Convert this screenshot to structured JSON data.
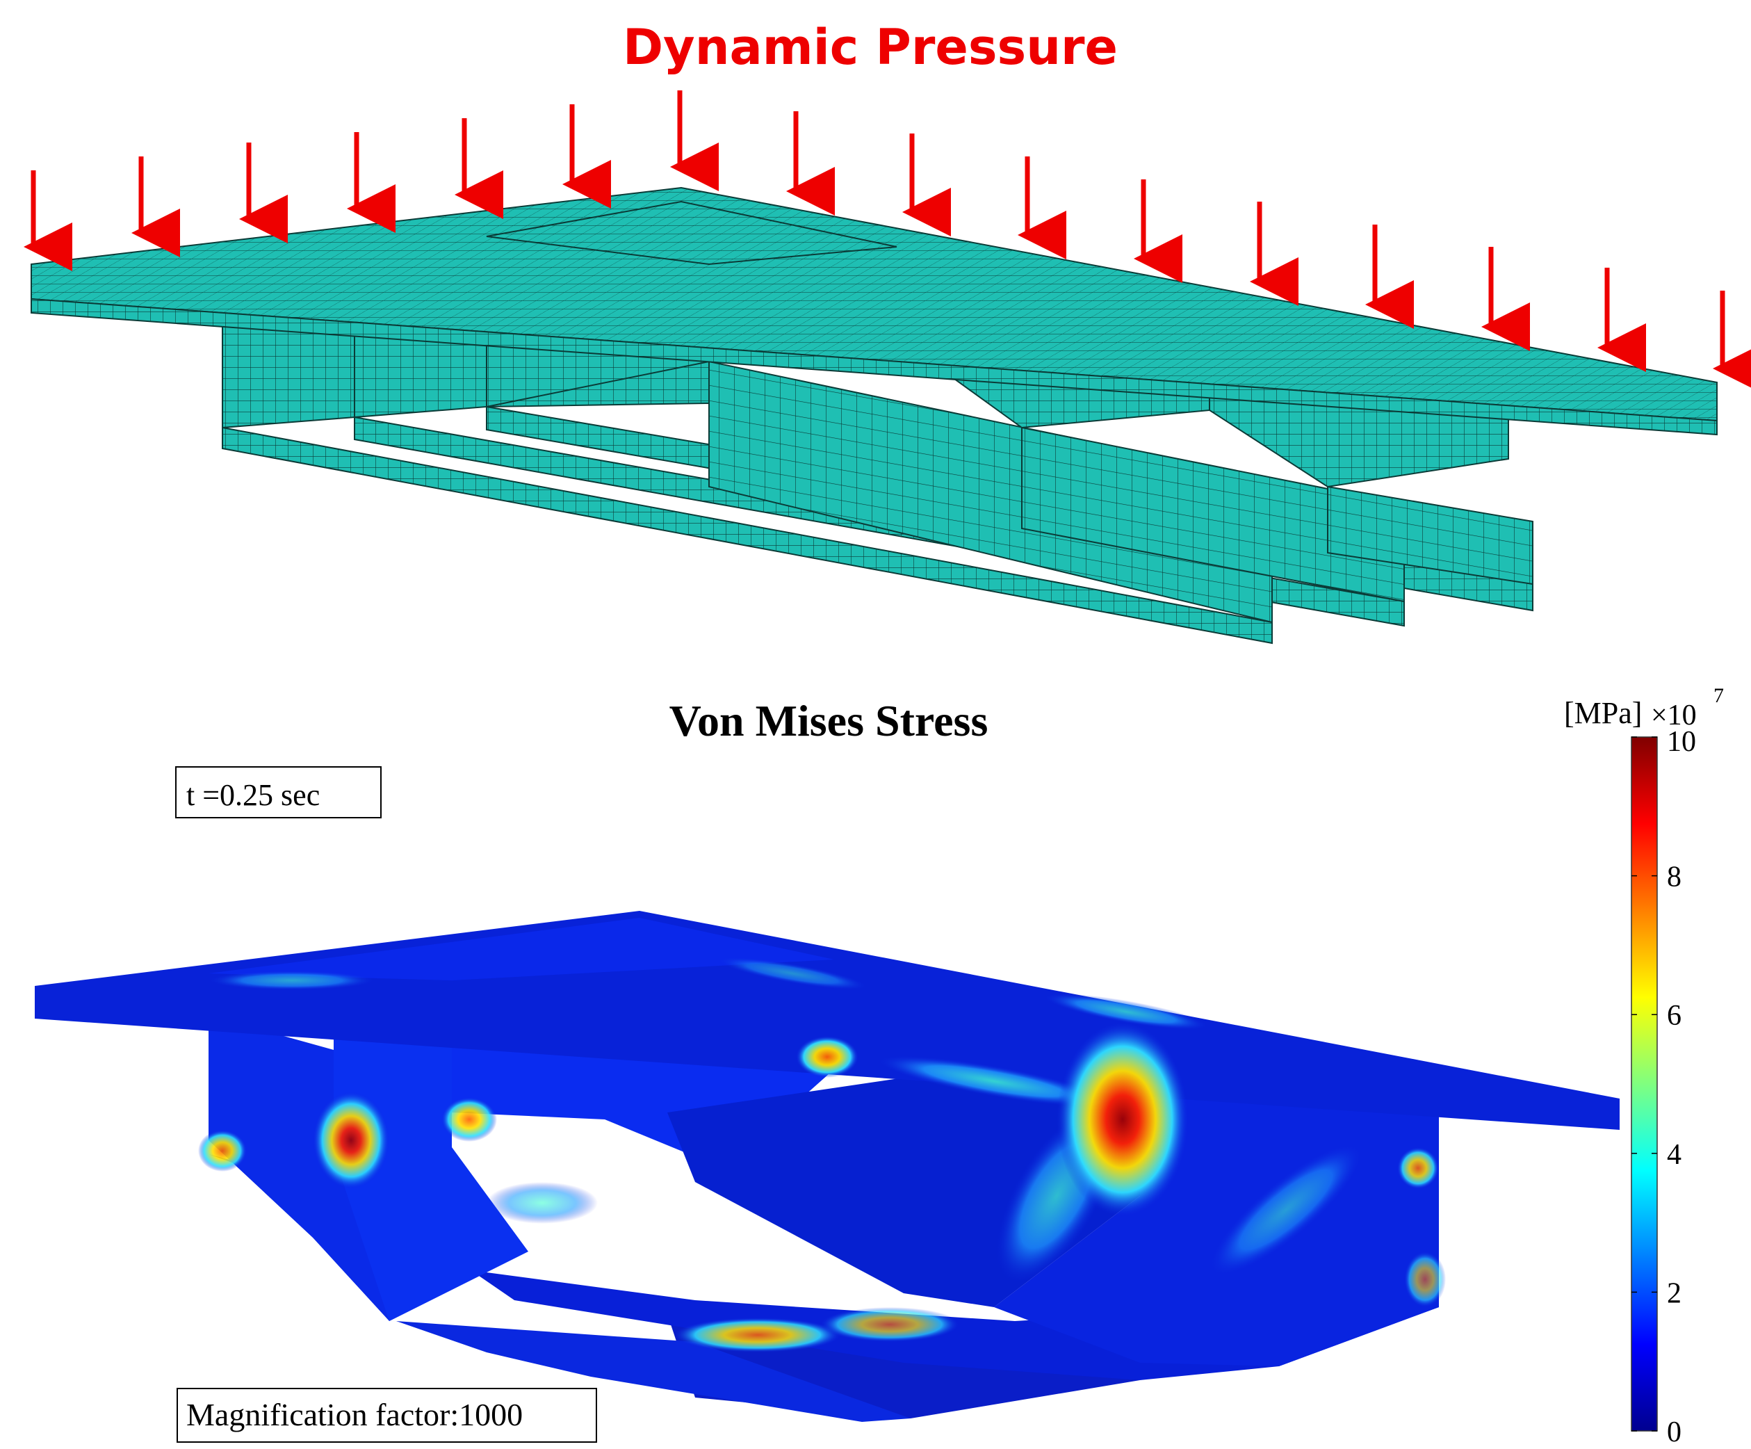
{
  "top_panel": {
    "title": "Dynamic Pressure"
  },
  "bottom_panel": {
    "title": "Von Mises Stress",
    "time_label": "t =0.25 sec",
    "magnification_label": "Magnification factor:1000"
  },
  "colorbar": {
    "unit_label": "[MPa]",
    "multiplier_base": "×10",
    "multiplier_exponent": "7",
    "ticks": [
      "0",
      "2",
      "4",
      "6",
      "8",
      "10"
    ],
    "range": [
      0,
      10
    ],
    "colormap": "jet"
  },
  "colors": {
    "mesh_fill": "#1fbfb3",
    "mesh_line": "#0b3b37",
    "arrow": "#ee0000",
    "stress_base": "#0a20e0"
  }
}
